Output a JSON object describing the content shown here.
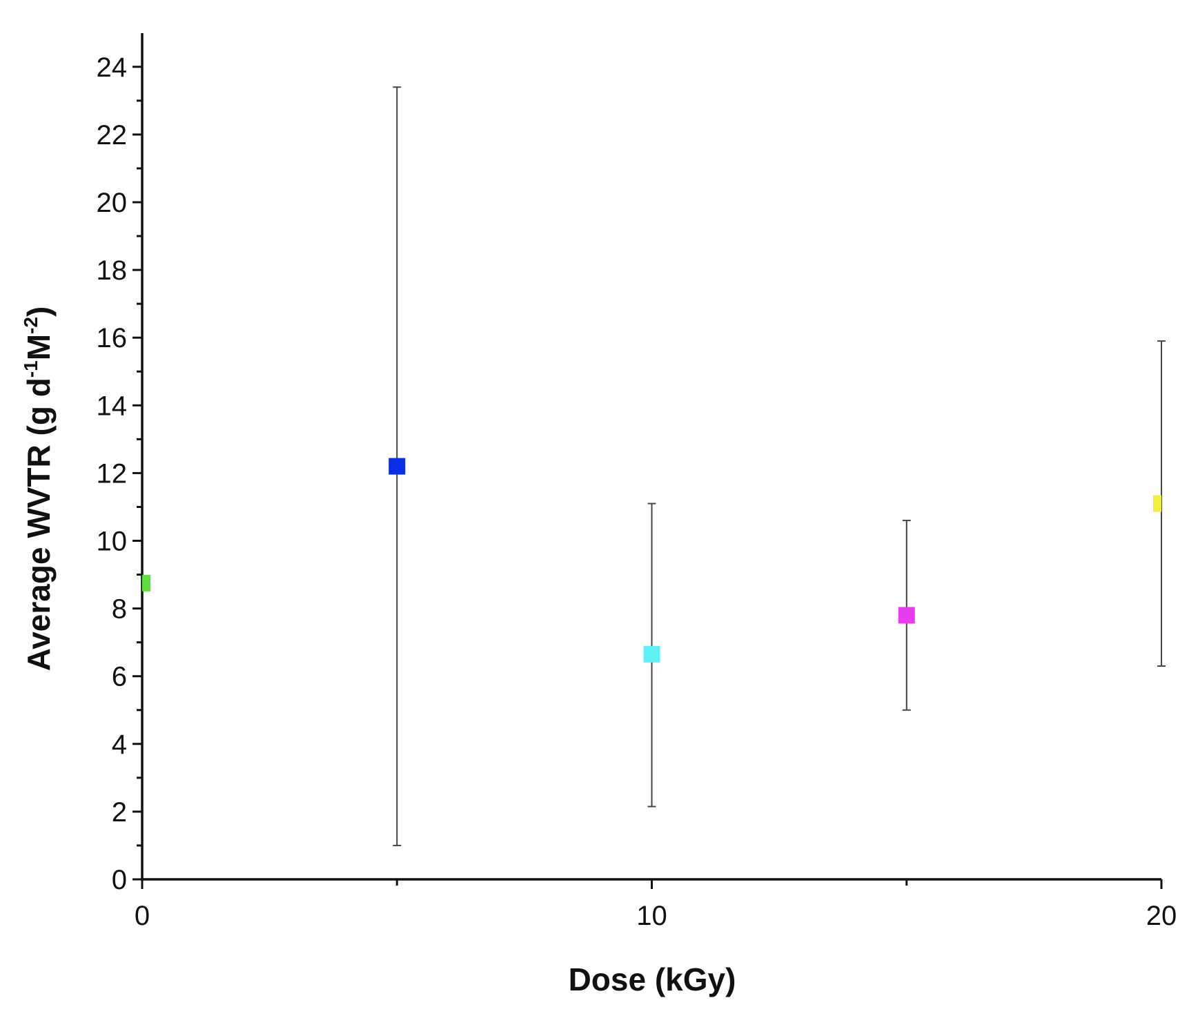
{
  "chart_data": {
    "type": "scatter",
    "xlabel": "Dose (kGy)",
    "ylabel": {
      "text": "Average WVTR (g d",
      "sup1": "-1",
      "mid": "M",
      "sup2": "-2",
      "end": ")"
    },
    "xlim": [
      0,
      20
    ],
    "ylim": [
      0,
      25
    ],
    "x_ticks": [
      0,
      10,
      20
    ],
    "x_minor_ticks": [
      5,
      15
    ],
    "y_ticks": [
      0,
      2,
      4,
      6,
      8,
      10,
      12,
      14,
      16,
      18,
      20,
      22,
      24
    ],
    "grid": false,
    "points": [
      {
        "x": 0,
        "y": 8.75,
        "err_low": null,
        "err_high": null,
        "color": "#5ee03a"
      },
      {
        "x": 5,
        "y": 12.2,
        "err_low": 1.0,
        "err_high": 23.4,
        "color": "#0a2ee8"
      },
      {
        "x": 10,
        "y": 6.65,
        "err_low": 2.15,
        "err_high": 11.1,
        "color": "#5cf2f5"
      },
      {
        "x": 15,
        "y": 7.8,
        "err_low": 5.0,
        "err_high": 10.6,
        "color": "#e83cf0"
      },
      {
        "x": 20,
        "y": 11.1,
        "err_low": 6.3,
        "err_high": 15.9,
        "color": "#f2ee3a"
      }
    ]
  }
}
